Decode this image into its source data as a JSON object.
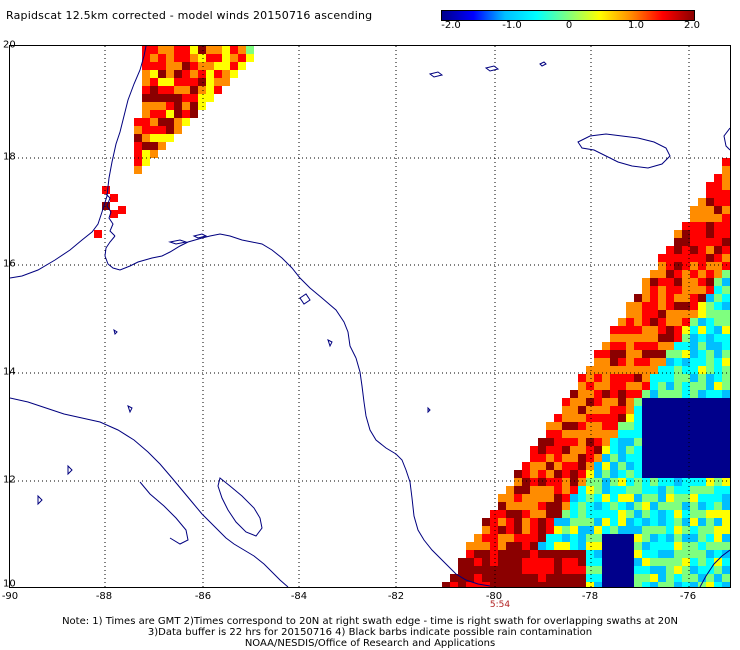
{
  "title": "Rapidscat 12.5km corrected - model winds 20150716 ascending",
  "colorbar": {
    "ticks": [
      "-2.0",
      "-1.0",
      "0",
      "1.0",
      "2.0"
    ],
    "stops": [
      "#00008b",
      "#0000ff",
      "#00bfff",
      "#00ffff",
      "#7fff7f",
      "#ffff00",
      "#ff8c00",
      "#ff0000",
      "#8b0000"
    ]
  },
  "map": {
    "lat_labels": [
      "20",
      "18",
      "16",
      "14",
      "12",
      "10"
    ],
    "lon_labels": [
      "-90",
      "-88",
      "-86",
      "-84",
      "-82",
      "-80",
      "-78",
      "-76"
    ],
    "lat_range": [
      10,
      20
    ],
    "lon_range": [
      -90,
      -75.3
    ],
    "swath_time": "5:54",
    "coastline_color": "#00007f",
    "grid_color": "#000000"
  },
  "notes": {
    "line1": "Note: 1) Times are GMT 2)Times correspond to 20N at right swath edge - time is right swath for overlapping swaths at 20N",
    "line2": "3)Data buffer is 22 hrs for 20150716 4) Black barbs indicate possible rain contamination",
    "line3": "NOAA/NESDIS/Office of Research and Applications"
  }
}
